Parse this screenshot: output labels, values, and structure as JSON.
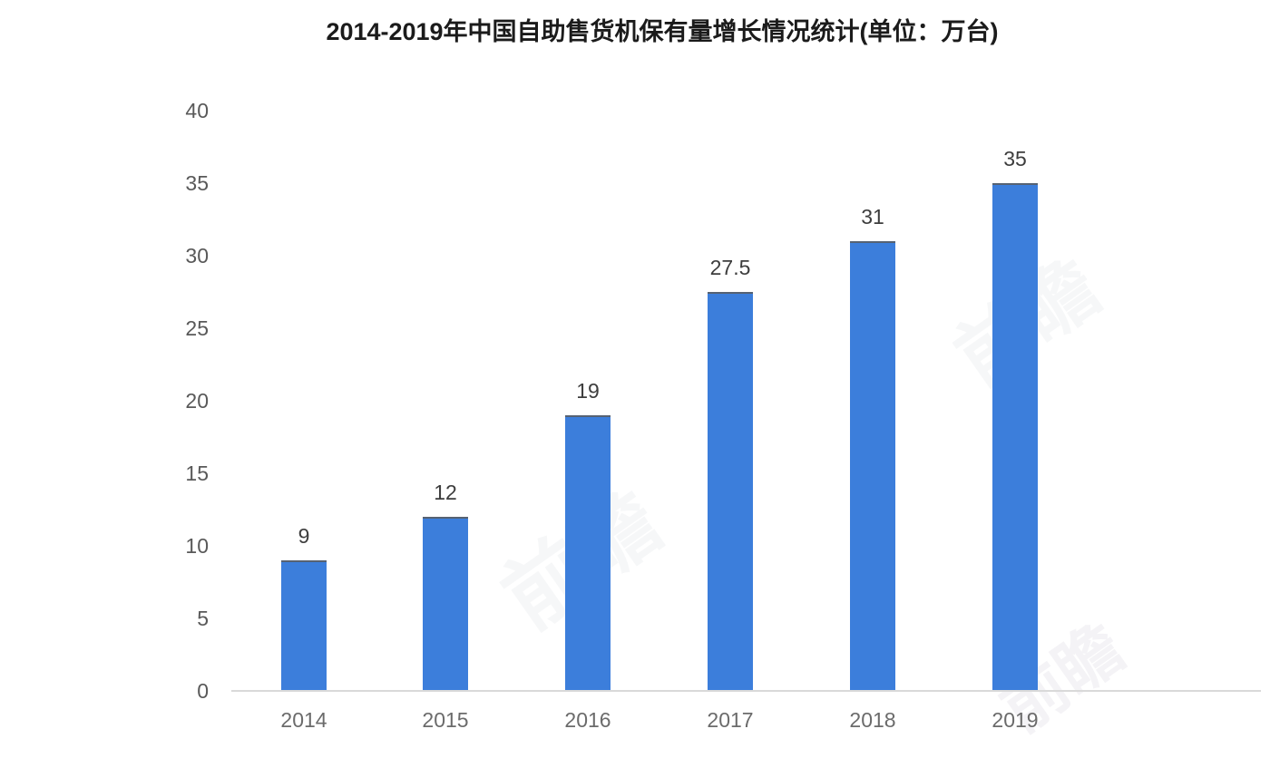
{
  "title": "2014-2019年中国自助售货机保有量增长情况统计(单位：万台)",
  "watermark": {
    "text": "前瞻"
  },
  "colors": {
    "bar_fill": "#3c7edb",
    "bar_top_edge": "#566273",
    "axis_line": "#d9d9d9",
    "title_text": "#1b1b1b",
    "ytick_text": "#595959",
    "xtick_text": "#6b6b6b",
    "value_text": "#3d3d3d",
    "background": "#ffffff"
  },
  "chart_data": {
    "type": "bar",
    "title": "2014-2019年中国自助售货机保有量增长情况统计(单位：万台)",
    "unit": "万台",
    "categories": [
      "2014",
      "2015",
      "2016",
      "2017",
      "2018",
      "2019"
    ],
    "values": [
      9,
      12,
      19,
      27.5,
      31,
      35
    ],
    "value_labels": [
      "9",
      "12",
      "19",
      "27.5",
      "31",
      "35"
    ],
    "xlabel": "",
    "ylabel": "",
    "ylim": [
      0,
      40
    ],
    "yticks": [
      0,
      5,
      10,
      15,
      20,
      25,
      30,
      35,
      40
    ],
    "ytick_labels": [
      "0",
      "5",
      "10",
      "15",
      "20",
      "25",
      "30",
      "35",
      "40"
    ],
    "grid": false,
    "legend": null,
    "data_labels_shown": true
  }
}
